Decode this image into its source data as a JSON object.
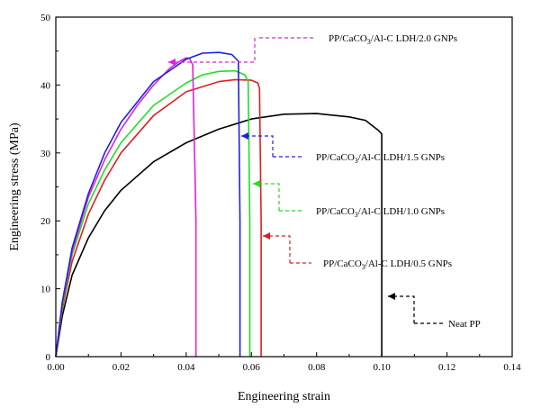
{
  "chart_data": {
    "type": "line",
    "xlabel": "Engineering strain",
    "ylabel": "Engineering stress (MPa)",
    "xlim": [
      0,
      0.14
    ],
    "ylim": [
      0,
      50
    ],
    "xticks": [
      "0.00",
      "0.02",
      "0.04",
      "0.06",
      "0.08",
      "0.10",
      "0.12",
      "0.14"
    ],
    "yticks": [
      "0",
      "10",
      "20",
      "30",
      "40",
      "50"
    ],
    "series": [
      {
        "name": "Neat PP",
        "legend_text": "Neat PP",
        "color": "#000000",
        "x": [
          0,
          0.002,
          0.005,
          0.01,
          0.015,
          0.02,
          0.03,
          0.04,
          0.05,
          0.06,
          0.07,
          0.08,
          0.09,
          0.095,
          0.099,
          0.1,
          0.1,
          0.1
        ],
        "y": [
          0,
          6,
          12,
          17.5,
          21.5,
          24.5,
          28.7,
          31.5,
          33.5,
          35.0,
          35.7,
          35.8,
          35.3,
          34.8,
          33.3,
          32.8,
          10,
          0
        ]
      },
      {
        "name": "PP/CaCO3/Al-C LDH/0.5 GNPs",
        "legend_prefix": "PP/CaCO",
        "legend_sub": "3",
        "legend_suffix": "/Al-C LDH/0.5 GNPs",
        "color": "#e02020",
        "x": [
          0,
          0.002,
          0.005,
          0.01,
          0.015,
          0.02,
          0.03,
          0.04,
          0.05,
          0.055,
          0.06,
          0.062,
          0.0625,
          0.063,
          0.063
        ],
        "y": [
          0,
          7,
          14,
          21,
          26,
          30,
          35.5,
          39,
          40.5,
          40.8,
          40.7,
          40.3,
          39.5,
          20,
          0
        ]
      },
      {
        "name": "PP/CaCO3/Al-C LDH/1.0 GNPs",
        "legend_prefix": "PP/CaCO",
        "legend_sub": "3",
        "legend_suffix": "/Al-C LDH/1.0 GNPs",
        "color": "#20e020",
        "x": [
          0,
          0.002,
          0.005,
          0.01,
          0.015,
          0.02,
          0.03,
          0.04,
          0.045,
          0.05,
          0.055,
          0.058,
          0.059,
          0.0595,
          0.0595
        ],
        "y": [
          0,
          7.5,
          15,
          22.5,
          27.5,
          31.5,
          37,
          40.3,
          41.5,
          42.0,
          42.1,
          41.5,
          40.5,
          20,
          0
        ]
      },
      {
        "name": "PP/CaCO3/Al-C LDH/1.5 GNPs",
        "legend_prefix": "PP/CaCO",
        "legend_sub": "3",
        "legend_suffix": "/Al-C LDH/1.5 GNPs",
        "color": "#2020e0",
        "x": [
          0,
          0.002,
          0.005,
          0.01,
          0.015,
          0.02,
          0.03,
          0.04,
          0.045,
          0.05,
          0.054,
          0.056,
          0.0565,
          0.0565
        ],
        "y": [
          0,
          8,
          16,
          24,
          30,
          34.5,
          40.5,
          43.8,
          44.7,
          44.8,
          44.5,
          43.5,
          20,
          0
        ]
      },
      {
        "name": "PP/CaCO3/Al-C LDH/2.0 GNPs",
        "legend_prefix": "PP/CaCO",
        "legend_sub": "3",
        "legend_suffix": "/Al-C LDH/2.0 GNPs",
        "color": "#e020e0",
        "x": [
          0,
          0.002,
          0.005,
          0.01,
          0.015,
          0.02,
          0.025,
          0.03,
          0.035,
          0.038,
          0.04,
          0.041,
          0.042,
          0.043,
          0.043
        ],
        "y": [
          0,
          8,
          15.5,
          23.5,
          29,
          33.5,
          37,
          40,
          42.5,
          43.5,
          44.0,
          43.9,
          43.0,
          20,
          0
        ]
      }
    ]
  }
}
